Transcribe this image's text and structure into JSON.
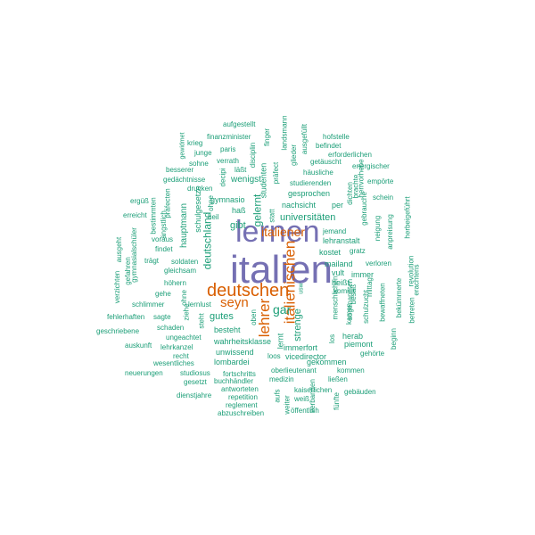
{
  "colors": {
    "purple": "#7570b3",
    "orange": "#d95f02",
    "teal": "#1b9e77"
  },
  "words": [
    {
      "text": "italien",
      "color": "purple"
    },
    {
      "text": "lernen",
      "color": "purple"
    },
    {
      "text": "deutschen",
      "color": "orange"
    },
    {
      "text": "italienischen",
      "color": "orange"
    },
    {
      "text": "lehrer",
      "color": "orange"
    },
    {
      "text": "italiener",
      "color": "orange"
    },
    {
      "text": "seyn",
      "color": "orange"
    },
    {
      "text": "gar",
      "color": "teal"
    },
    {
      "text": "deutschland",
      "color": "teal"
    },
    {
      "text": "gelernt",
      "color": "teal"
    },
    {
      "text": "universitäten",
      "color": "teal"
    },
    {
      "text": "strenge",
      "color": "teal"
    },
    {
      "text": "gibt",
      "color": "teal"
    },
    {
      "text": "gutes",
      "color": "teal"
    },
    {
      "text": "hauptmann",
      "color": "teal"
    },
    {
      "text": "wenigst",
      "color": "teal"
    },
    {
      "text": "wahrheitsklasse",
      "color": "teal"
    },
    {
      "text": "unwissend",
      "color": "teal"
    },
    {
      "text": "aufgestellt",
      "color": "teal"
    },
    {
      "text": "finanzminister",
      "color": "teal"
    },
    {
      "text": "paris",
      "color": "teal"
    },
    {
      "text": "verrath",
      "color": "teal"
    },
    {
      "text": "krieg",
      "color": "teal"
    },
    {
      "text": "junge",
      "color": "teal"
    },
    {
      "text": "sohne",
      "color": "teal"
    },
    {
      "text": "gewidmet",
      "color": "teal"
    },
    {
      "text": "besserer",
      "color": "teal"
    },
    {
      "text": "gedächtnisse",
      "color": "teal"
    },
    {
      "text": "drucken",
      "color": "teal"
    },
    {
      "text": "läßt",
      "color": "teal"
    },
    {
      "text": "decipi",
      "color": "teal"
    },
    {
      "text": "disciplin",
      "color": "teal"
    },
    {
      "text": "finger",
      "color": "teal"
    },
    {
      "text": "präfect",
      "color": "teal"
    },
    {
      "text": "landsmann",
      "color": "teal"
    },
    {
      "text": "glieder",
      "color": "teal"
    },
    {
      "text": "ausgefüllt",
      "color": "teal"
    },
    {
      "text": "hofstelle",
      "color": "teal"
    },
    {
      "text": "befindet",
      "color": "teal"
    },
    {
      "text": "erforderlichen",
      "color": "teal"
    },
    {
      "text": "energischer",
      "color": "teal"
    },
    {
      "text": "getäuscht",
      "color": "teal"
    },
    {
      "text": "häusliche",
      "color": "teal"
    },
    {
      "text": "empörte",
      "color": "teal"
    },
    {
      "text": "studierenden",
      "color": "teal"
    },
    {
      "text": "gesprochen",
      "color": "teal"
    },
    {
      "text": "schein",
      "color": "teal"
    },
    {
      "text": "nachsicht",
      "color": "teal"
    },
    {
      "text": "per",
      "color": "teal"
    },
    {
      "text": "gymnasio",
      "color": "teal"
    },
    {
      "text": "haß",
      "color": "teal"
    },
    {
      "text": "heil",
      "color": "teal"
    },
    {
      "text": "schulgesetze",
      "color": "teal"
    },
    {
      "text": "studenten",
      "color": "teal"
    },
    {
      "text": "statt",
      "color": "teal"
    },
    {
      "text": "ergüß",
      "color": "teal"
    },
    {
      "text": "erreicht",
      "color": "teal"
    },
    {
      "text": "bestimmten",
      "color": "teal"
    },
    {
      "text": "ängstlich",
      "color": "teal"
    },
    {
      "text": "präfecten",
      "color": "teal"
    },
    {
      "text": "voraus",
      "color": "teal"
    },
    {
      "text": "findet",
      "color": "teal"
    },
    {
      "text": "trägt",
      "color": "teal"
    },
    {
      "text": "gleichsam",
      "color": "teal"
    },
    {
      "text": "soldaten",
      "color": "teal"
    },
    {
      "text": "höhern",
      "color": "teal"
    },
    {
      "text": "jemand",
      "color": "teal"
    },
    {
      "text": "lehranstalt",
      "color": "teal"
    },
    {
      "text": "kostet",
      "color": "teal"
    },
    {
      "text": "mailand",
      "color": "teal"
    },
    {
      "text": "vult",
      "color": "teal"
    },
    {
      "text": "heißt",
      "color": "teal"
    },
    {
      "text": "gratz",
      "color": "teal"
    },
    {
      "text": "immer",
      "color": "teal"
    },
    {
      "text": "verloren",
      "color": "teal"
    },
    {
      "text": "kommt",
      "color": "teal"
    },
    {
      "text": "neigung",
      "color": "teal"
    },
    {
      "text": "anpreisung",
      "color": "teal"
    },
    {
      "text": "herbeigeführt",
      "color": "teal"
    },
    {
      "text": "verzichten",
      "color": "teal"
    },
    {
      "text": "ausgeht",
      "color": "teal"
    },
    {
      "text": "gefahren",
      "color": "teal"
    },
    {
      "text": "gymnasialschüler",
      "color": "teal"
    },
    {
      "text": "gehe",
      "color": "teal"
    },
    {
      "text": "schlimmer",
      "color": "teal"
    },
    {
      "text": "lernlust",
      "color": "teal"
    },
    {
      "text": "fehlerhaften",
      "color": "teal"
    },
    {
      "text": "sagte",
      "color": "teal"
    },
    {
      "text": "geschriebene",
      "color": "teal"
    },
    {
      "text": "schaden",
      "color": "teal"
    },
    {
      "text": "ungeachtet",
      "color": "teal"
    },
    {
      "text": "besteht",
      "color": "teal"
    },
    {
      "text": "lernt",
      "color": "teal"
    },
    {
      "text": "herab",
      "color": "teal"
    },
    {
      "text": "piemont",
      "color": "teal"
    },
    {
      "text": "immerfort",
      "color": "teal"
    },
    {
      "text": "lombardei",
      "color": "teal"
    },
    {
      "text": "vicedirector",
      "color": "teal"
    },
    {
      "text": "loos",
      "color": "teal"
    },
    {
      "text": "gekommen",
      "color": "teal"
    },
    {
      "text": "auskunft",
      "color": "teal"
    },
    {
      "text": "lehrkanzel",
      "color": "teal"
    },
    {
      "text": "recht",
      "color": "teal"
    },
    {
      "text": "wesentliches",
      "color": "teal"
    },
    {
      "text": "neuerungen",
      "color": "teal"
    },
    {
      "text": "studiosus",
      "color": "teal"
    },
    {
      "text": "gesetzt",
      "color": "teal"
    },
    {
      "text": "buchhändler",
      "color": "teal"
    },
    {
      "text": "oberlieutenant",
      "color": "teal"
    },
    {
      "text": "kommen",
      "color": "teal"
    },
    {
      "text": "medizin",
      "color": "teal"
    },
    {
      "text": "ließen",
      "color": "teal"
    },
    {
      "text": "antworteten",
      "color": "teal"
    },
    {
      "text": "repetition",
      "color": "teal"
    },
    {
      "text": "dienstjahre",
      "color": "teal"
    },
    {
      "text": "fortschritts",
      "color": "teal"
    },
    {
      "text": "reglement",
      "color": "teal"
    },
    {
      "text": "abzuschreiben",
      "color": "teal"
    },
    {
      "text": "kaiserlichen",
      "color": "teal"
    },
    {
      "text": "gebäuden",
      "color": "teal"
    },
    {
      "text": "weiß",
      "color": "teal"
    },
    {
      "text": "öffentlich",
      "color": "teal"
    },
    {
      "text": "aufs",
      "color": "teal"
    },
    {
      "text": "weiter",
      "color": "teal"
    },
    {
      "text": "fünfte",
      "color": "teal"
    },
    {
      "text": "gehörte",
      "color": "teal"
    },
    {
      "text": "beginn",
      "color": "teal"
    },
    {
      "text": "betreten",
      "color": "teal"
    },
    {
      "text": "revolution",
      "color": "teal"
    },
    {
      "text": "erachtens",
      "color": "teal"
    },
    {
      "text": "bekümmerte",
      "color": "teal"
    },
    {
      "text": "bewaffneten",
      "color": "teal"
    },
    {
      "text": "sogenannten",
      "color": "teal"
    },
    {
      "text": "mittag",
      "color": "teal"
    },
    {
      "text": "schulzucht",
      "color": "teal"
    },
    {
      "text": "kamen",
      "color": "teal"
    },
    {
      "text": "brachte",
      "color": "teal"
    },
    {
      "text": "gebrauche",
      "color": "teal"
    },
    {
      "text": "dichten",
      "color": "teal"
    },
    {
      "text": "herrvorhebe",
      "color": "teal"
    },
    {
      "text": "verbanden",
      "color": "teal"
    },
    {
      "text": "ohne",
      "color": "teal"
    },
    {
      "text": "oben",
      "color": "teal"
    },
    {
      "text": "steht",
      "color": "teal"
    },
    {
      "text": "ziehe",
      "color": "teal"
    },
    {
      "text": "usw",
      "color": "teal"
    },
    {
      "text": "besaß",
      "color": "teal"
    },
    {
      "text": "menschlichen",
      "color": "teal"
    },
    {
      "text": "los",
      "color": "teal"
    },
    {
      "text": "ohne",
      "color": "teal"
    }
  ]
}
